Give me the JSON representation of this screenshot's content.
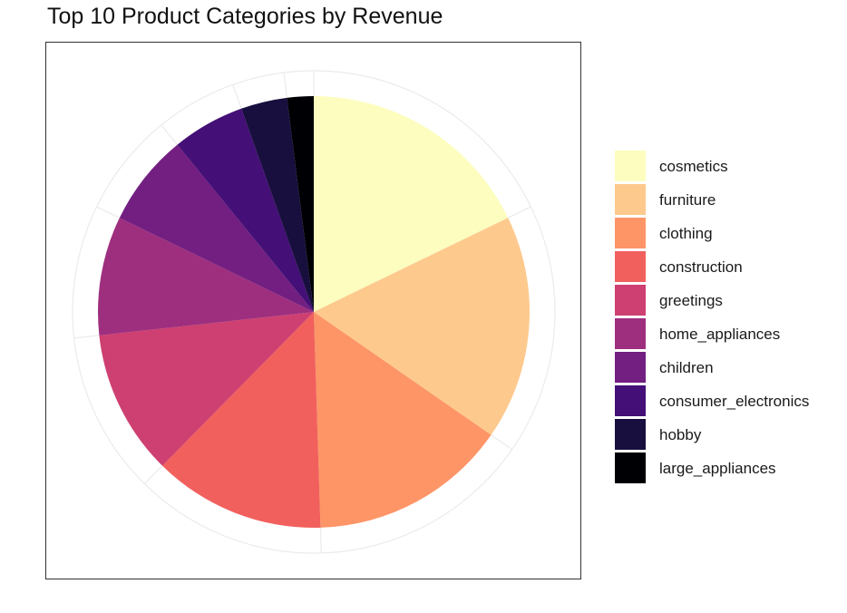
{
  "chart_data": {
    "type": "pie",
    "title": "Top 10 Product Categories by Revenue",
    "categories": [
      "cosmetics",
      "furniture",
      "clothing",
      "construction",
      "greetings",
      "home_appliances",
      "children",
      "consumer_electronics",
      "hobby",
      "large_appliances"
    ],
    "values": [
      36,
      34,
      30,
      26,
      22,
      18,
      14,
      11,
      7,
      4
    ],
    "colors": [
      "#FCFDBF",
      "#FEC98D",
      "#FD9567",
      "#F1605D",
      "#CD4071",
      "#9E2F7F",
      "#721F81",
      "#440F76",
      "#180F3E",
      "#000004"
    ],
    "legend_position": "right",
    "grid": true
  }
}
